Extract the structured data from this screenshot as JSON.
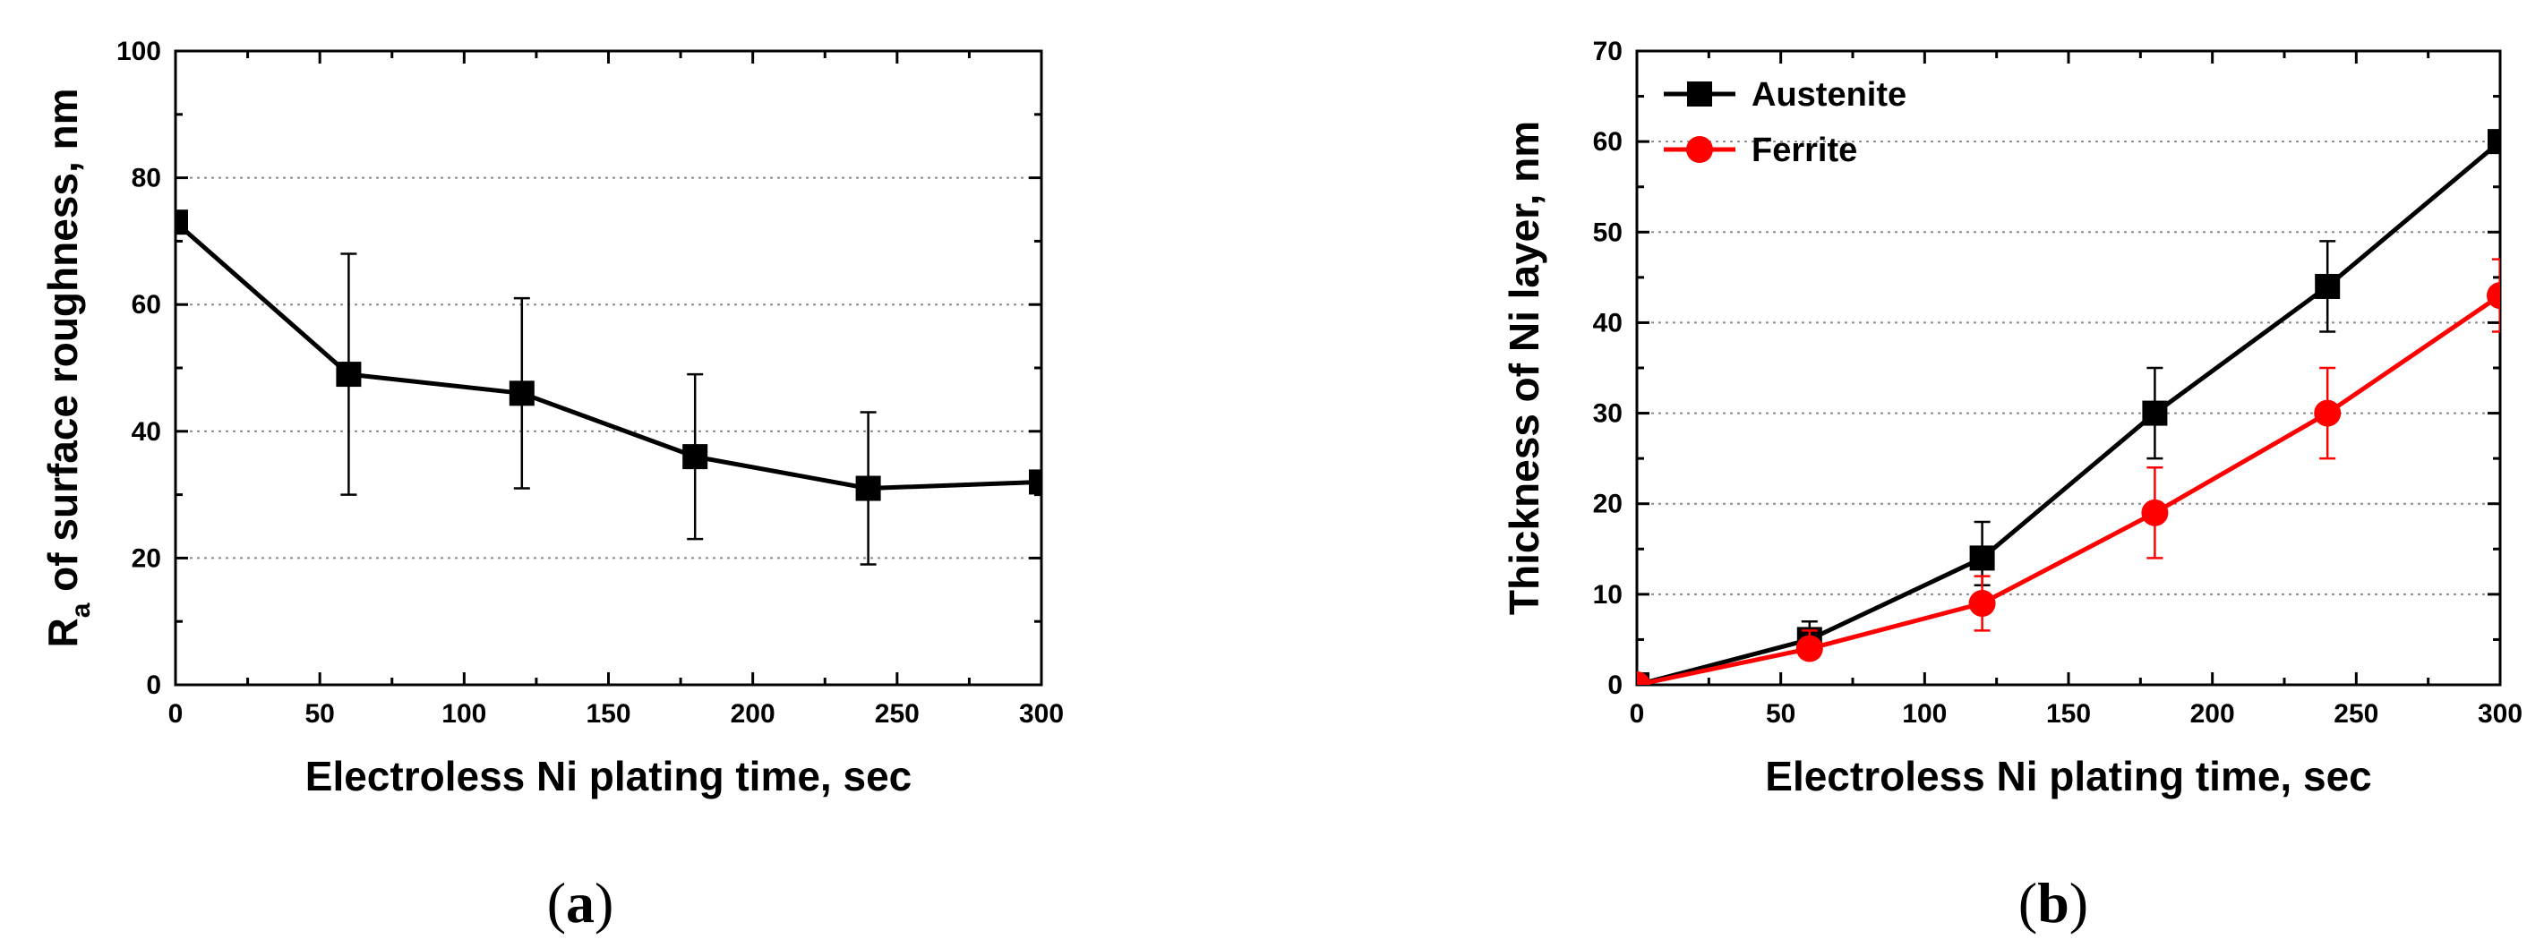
{
  "chart_data": [
    {
      "type": "line",
      "panel_label": "a",
      "xlabel": "Electroless Ni plating time, sec",
      "ylabel_main": "R",
      "ylabel_sub": "a",
      "ylabel_rest": " of surface roughness, nm",
      "xlim": [
        0,
        300
      ],
      "ylim": [
        0,
        100
      ],
      "xticks": [
        0,
        50,
        100,
        150,
        200,
        250,
        300
      ],
      "yticks": [
        0,
        20,
        40,
        60,
        80,
        100
      ],
      "grid": "horizontal dotted",
      "series": [
        {
          "color": "#000000",
          "marker": "square",
          "x": [
            0,
            60,
            120,
            180,
            240,
            300
          ],
          "y": [
            73,
            49,
            46,
            36,
            31,
            32
          ],
          "err_low": [
            null,
            30,
            31,
            23,
            19,
            null
          ],
          "err_high": [
            null,
            68,
            61,
            49,
            43,
            null
          ]
        }
      ]
    },
    {
      "type": "line",
      "panel_label": "b",
      "xlabel": "Electroless Ni plating time, sec",
      "ylabel": "Thickness of Ni layer, nm",
      "xlim": [
        0,
        300
      ],
      "ylim": [
        0,
        70
      ],
      "xticks": [
        0,
        50,
        100,
        150,
        200,
        250,
        300
      ],
      "yticks": [
        0,
        10,
        20,
        30,
        40,
        50,
        60,
        70
      ],
      "grid": "horizontal dotted",
      "legend": "top-left",
      "series": [
        {
          "name": "Austenite",
          "color": "#000000",
          "marker": "square",
          "x": [
            0,
            60,
            120,
            180,
            240,
            300
          ],
          "y": [
            0,
            5,
            14,
            30,
            44,
            60
          ],
          "err_low": [
            null,
            4,
            11,
            25,
            39,
            null
          ],
          "err_high": [
            null,
            7,
            18,
            35,
            49,
            null
          ]
        },
        {
          "name": "Ferrite",
          "color": "#ff0000",
          "marker": "circle",
          "x": [
            0,
            60,
            120,
            180,
            240,
            300
          ],
          "y": [
            0,
            4,
            9,
            19,
            30,
            43
          ],
          "err_low": [
            null,
            3,
            6,
            14,
            25,
            39
          ],
          "err_high": [
            null,
            6,
            12,
            24,
            35,
            47
          ]
        }
      ]
    }
  ]
}
